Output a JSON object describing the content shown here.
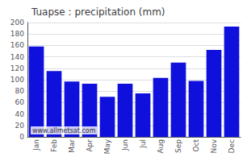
{
  "chart_data": {
    "type": "bar",
    "title": "Tuapse : precipitation (mm)",
    "categories": [
      "Jan",
      "Feb",
      "Mar",
      "Apr",
      "May",
      "Jun",
      "Jul",
      "Aug",
      "Sep",
      "Oct",
      "Nov",
      "Dec"
    ],
    "values": [
      158,
      115,
      97,
      93,
      70,
      93,
      76,
      103,
      130,
      98,
      152,
      193
    ],
    "color": "#1010dd",
    "ylim": [
      0,
      200
    ],
    "yticks": [
      0,
      20,
      40,
      60,
      80,
      100,
      120,
      140,
      160,
      180,
      200
    ],
    "grid": true,
    "annotations": [
      "www.allmetsat.com"
    ]
  }
}
